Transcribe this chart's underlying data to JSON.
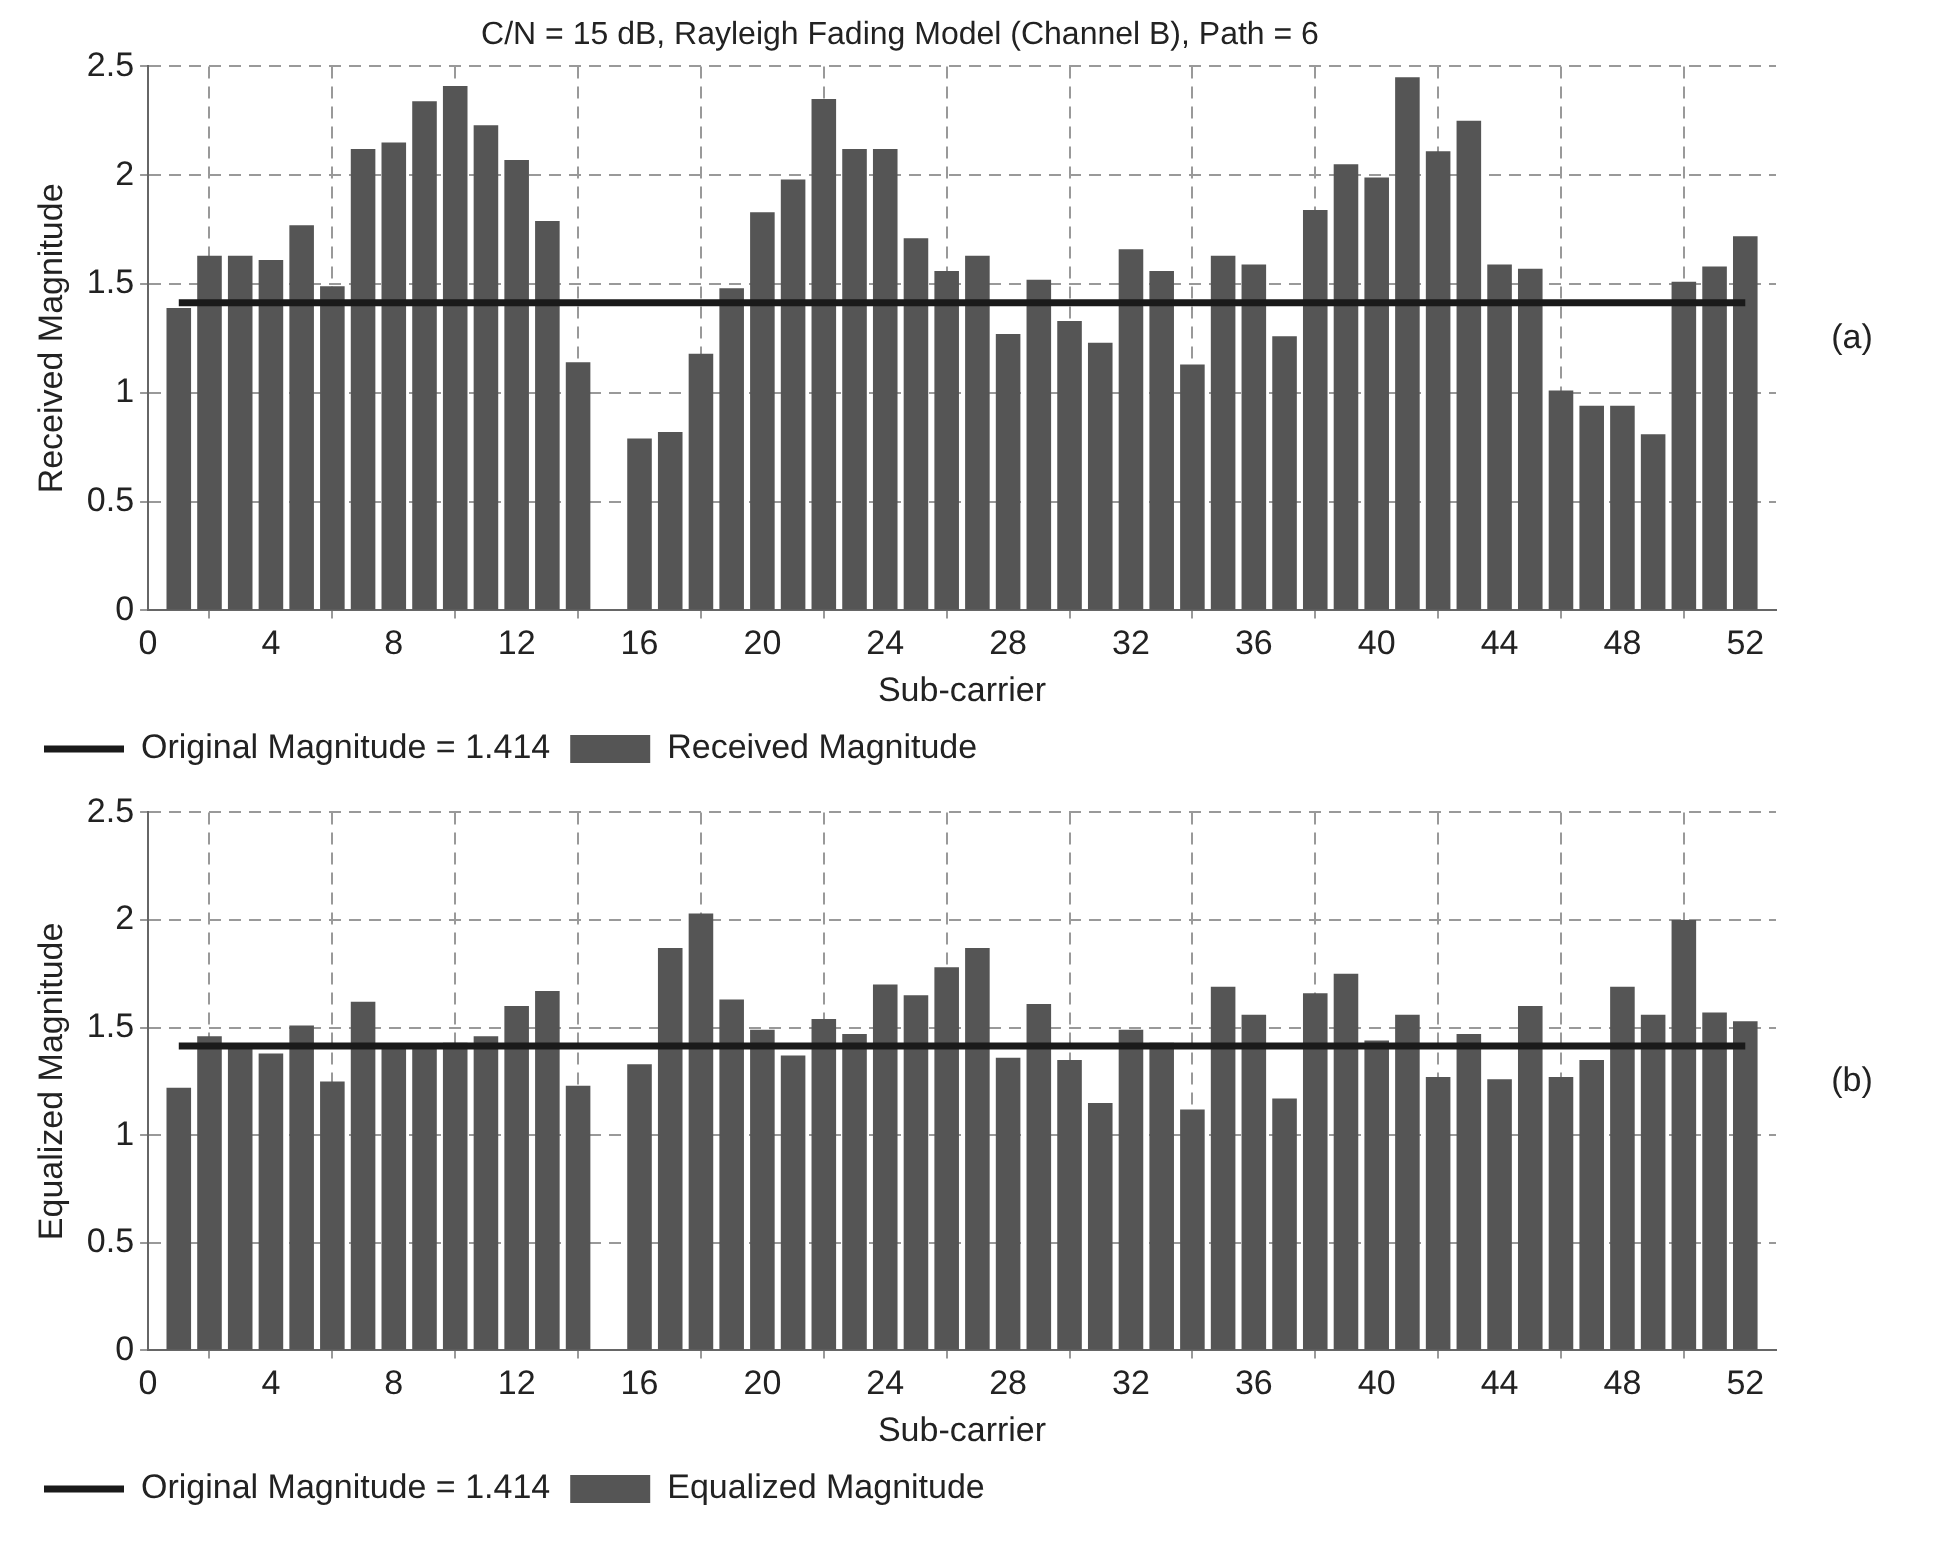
{
  "chart_data": [
    {
      "type": "bar",
      "title": "C/N = 15 dB, Rayleigh Fading Model (Channel B), Path = 6",
      "xlabel": "Sub-carrier",
      "ylabel": "Received Magnitude",
      "annotations": [
        "(a)"
      ],
      "xlim": [
        0,
        53
      ],
      "xticks": [
        0,
        4,
        8,
        12,
        16,
        20,
        24,
        28,
        32,
        36,
        40,
        44,
        48,
        52
      ],
      "ylim": [
        0,
        2.5
      ],
      "yticks": [
        0,
        0.5,
        1,
        1.5,
        2,
        2.5
      ],
      "grid": true,
      "legend": "bottom left",
      "series": [
        {
          "type": "line",
          "name": "Original Magnitude = 1.414",
          "color": "#1a1a1a",
          "x": [
            1,
            52
          ],
          "values": [
            1.414,
            1.414
          ]
        },
        {
          "name": "Received Magnitude",
          "color": "#555555",
          "x": [
            1,
            2,
            3,
            4,
            5,
            6,
            7,
            8,
            9,
            10,
            11,
            12,
            13,
            14,
            15,
            16,
            17,
            18,
            19,
            20,
            21,
            22,
            23,
            24,
            25,
            26,
            27,
            28,
            29,
            30,
            31,
            32,
            33,
            34,
            35,
            36,
            37,
            38,
            39,
            40,
            41,
            42,
            43,
            44,
            45,
            46,
            47,
            48,
            49,
            50,
            51,
            52
          ],
          "values": [
            1.39,
            1.63,
            1.63,
            1.61,
            1.77,
            1.49,
            2.12,
            2.15,
            2.34,
            2.41,
            2.23,
            2.07,
            1.79,
            1.14,
            null,
            0.79,
            0.82,
            1.18,
            1.48,
            1.83,
            1.98,
            2.35,
            2.12,
            2.12,
            1.71,
            1.56,
            1.63,
            1.27,
            1.52,
            1.33,
            1.23,
            1.66,
            1.56,
            1.13,
            1.63,
            1.59,
            1.26,
            1.84,
            2.05,
            1.99,
            2.45,
            2.11,
            2.25,
            1.59,
            1.57,
            1.01,
            0.94,
            0.94,
            0.81,
            1.51,
            1.58,
            1.72
          ]
        }
      ]
    },
    {
      "type": "bar",
      "xlabel": "Sub-carrier",
      "ylabel": "Equalized Magnitude",
      "annotations": [
        "(b)"
      ],
      "xlim": [
        0,
        53
      ],
      "xticks": [
        0,
        4,
        8,
        12,
        16,
        20,
        24,
        28,
        32,
        36,
        40,
        44,
        48,
        52
      ],
      "ylim": [
        0,
        2.5
      ],
      "yticks": [
        0,
        0.5,
        1,
        1.5,
        2,
        2.5
      ],
      "grid": true,
      "legend": "bottom left",
      "series": [
        {
          "type": "line",
          "name": "Original Magnitude = 1.414",
          "color": "#1a1a1a",
          "x": [
            1,
            52
          ],
          "values": [
            1.414,
            1.414
          ]
        },
        {
          "name": "Equalized Magnitude",
          "color": "#555555",
          "x": [
            1,
            2,
            3,
            4,
            5,
            6,
            7,
            8,
            9,
            10,
            11,
            12,
            13,
            14,
            15,
            16,
            17,
            18,
            19,
            20,
            21,
            22,
            23,
            24,
            25,
            26,
            27,
            28,
            29,
            30,
            31,
            32,
            33,
            34,
            35,
            36,
            37,
            38,
            39,
            40,
            41,
            42,
            43,
            44,
            45,
            46,
            47,
            48,
            49,
            50,
            51,
            52
          ],
          "values": [
            1.22,
            1.46,
            1.41,
            1.38,
            1.51,
            1.25,
            1.62,
            1.41,
            1.4,
            1.43,
            1.46,
            1.6,
            1.67,
            1.23,
            null,
            1.33,
            1.87,
            2.03,
            1.63,
            1.49,
            1.37,
            1.54,
            1.47,
            1.7,
            1.65,
            1.78,
            1.87,
            1.36,
            1.61,
            1.35,
            1.15,
            1.49,
            1.43,
            1.12,
            1.69,
            1.56,
            1.17,
            1.66,
            1.75,
            1.44,
            1.56,
            1.27,
            1.47,
            1.26,
            1.6,
            1.27,
            1.35,
            1.69,
            1.56,
            2.0,
            1.57,
            1.53
          ]
        }
      ]
    }
  ]
}
